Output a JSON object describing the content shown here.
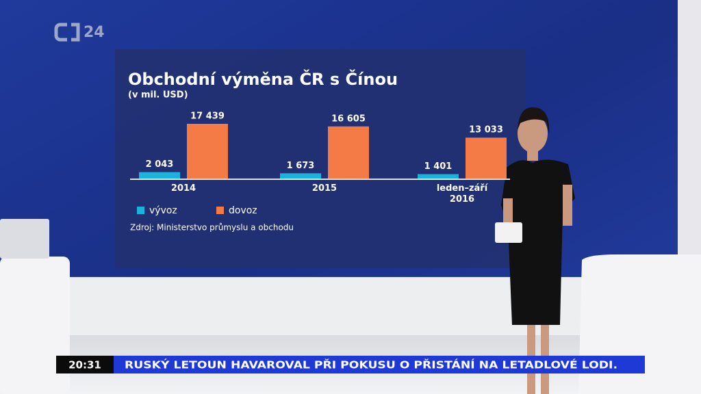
{
  "chart_data": {
    "type": "bar",
    "title": "Obchodní výměna ČR s Čínou",
    "subtitle": "(v mil. USD)",
    "categories": [
      "2014",
      "2015",
      "leden–září 2016"
    ],
    "series": [
      {
        "name": "vývoz",
        "color": "#1bb3dc",
        "values": [
          2043,
          1673,
          1401
        ],
        "value_labels": [
          "2 043",
          "1 673",
          "1 401"
        ]
      },
      {
        "name": "dovoz",
        "color": "#f47b46",
        "values": [
          17439,
          16605,
          13033
        ],
        "value_labels": [
          "17 439",
          "16 605",
          "13 033"
        ]
      }
    ],
    "source": "Zdroj: Ministerstvo průmyslu a obchodu"
  },
  "logo": "24",
  "ticker": {
    "time": "20:31",
    "headline": "RUSKÝ LETOUN HAVAROVAL PŘI POKUSU O PŘISTÁNÍ NA LETADLOVÉ LODI."
  }
}
